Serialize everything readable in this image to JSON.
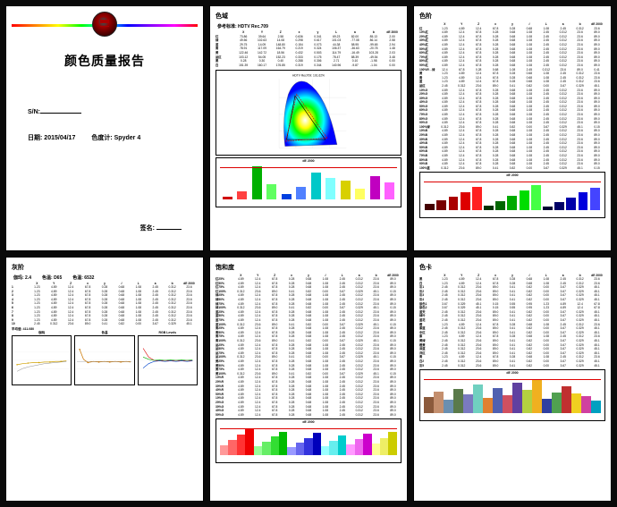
{
  "cover": {
    "title": "颜色质量报告",
    "sn_label": "S/N:",
    "date_label": "日期:",
    "date_value": "2015/04/17",
    "meter_label": "色度计:",
    "meter_value": "Spyder 4",
    "sign_label": "签名:"
  },
  "page2": {
    "title": "色域",
    "ref_label": "参考标准: HDTV Rec.709",
    "table": {
      "head": [
        "",
        "X",
        "Y",
        "Z",
        "x",
        "y",
        "L",
        "a",
        "b",
        "dE 2000"
      ],
      "rows": [
        [
          "红",
          "73.86",
          "39.64",
          "2.58",
          "0.636",
          "0.341",
          "69.23",
          "82.00",
          "85.13",
          "2.00"
        ],
        [
          "绿",
          "49.56",
          "102.63",
          "14.08",
          "0.298",
          "0.617",
          "101.03",
          "-77.08",
          "86.14",
          "2.58"
        ],
        [
          "蓝",
          "29.75",
          "14.09",
          "148.80",
          "0.154",
          "0.073",
          "44.38",
          "58.95",
          "-99.65",
          "2.94"
        ],
        [
          "青",
          "78.91",
          "117.09",
          "164.79",
          "0.219",
          "0.324",
          "106.37",
          "-36.63",
          "-20.78",
          "1.48"
        ],
        [
          "黄",
          "122.46",
          "142.72",
          "18.56",
          "0.432",
          "0.503",
          "114.79",
          "-16.49",
          "103.28",
          "2.03"
        ],
        [
          "品红",
          "103.12",
          "54.05",
          "152.23",
          "0.333",
          "0.175",
          "78.47",
          "88.39",
          "-49.54",
          "3.48"
        ],
        [
          "黑",
          "0.28",
          "0.30",
          "0.40",
          "0.288",
          "0.306",
          "2.71",
          "0.10",
          "-1.98",
          "0.00"
        ],
        [
          "白",
          "151.39",
          "160.17",
          "176.85",
          "0.319",
          "0.344",
          "140.96",
          "-9.87",
          "-1.04",
          "0.00"
        ]
      ]
    },
    "gamut_caption": "HDTV Rec709: 101.62%",
    "chart": {
      "caption": "dE 2000",
      "bars": [
        {
          "v": 8,
          "c": "#d00000"
        },
        {
          "v": 22,
          "c": "#ff4040"
        },
        {
          "v": 88,
          "c": "#00b000"
        },
        {
          "v": 42,
          "c": "#60ff60"
        },
        {
          "v": 16,
          "c": "#0040e0"
        },
        {
          "v": 34,
          "c": "#5080ff"
        },
        {
          "v": 72,
          "c": "#00c8c8"
        },
        {
          "v": 58,
          "c": "#80ffff"
        },
        {
          "v": 50,
          "c": "#d8d000"
        },
        {
          "v": 30,
          "c": "#ffff60"
        },
        {
          "v": 62,
          "c": "#c000c0"
        },
        {
          "v": 46,
          "c": "#ff60ff"
        }
      ]
    }
  },
  "page3": {
    "title": "色阶",
    "head": [
      "",
      "X",
      "Y",
      "Z",
      "x",
      "y",
      "√",
      "L",
      "a",
      "b",
      "dE 2000"
    ],
    "row_labels": [
      "红",
      "10%红",
      "20%红",
      "30%红",
      "40%红",
      "50%红",
      "60%红",
      "70%红",
      "80%红",
      "90%红",
      "100%R→绿",
      "黄",
      "青",
      "蓝",
      "品红",
      "10%G",
      "20%G",
      "30%G",
      "40%G",
      "50%G",
      "60%G",
      "70%G",
      "80%G",
      "90%G",
      "100%绿",
      "10%B",
      "20%B",
      "30%B",
      "40%B",
      "50%B",
      "60%B",
      "70%B",
      "80%B",
      "90%B",
      "100%蓝"
    ],
    "chart": {
      "caption": "dE 2000",
      "bars": [
        {
          "v": 18,
          "c": "#400"
        },
        {
          "v": 28,
          "c": "#700"
        },
        {
          "v": 38,
          "c": "#a00"
        },
        {
          "v": 52,
          "c": "#d00"
        },
        {
          "v": 66,
          "c": "#ff2020"
        },
        {
          "v": 14,
          "c": "#030"
        },
        {
          "v": 26,
          "c": "#060"
        },
        {
          "v": 40,
          "c": "#0a0"
        },
        {
          "v": 56,
          "c": "#0d0"
        },
        {
          "v": 72,
          "c": "#4f4"
        },
        {
          "v": 12,
          "c": "#003"
        },
        {
          "v": 24,
          "c": "#006"
        },
        {
          "v": 36,
          "c": "#00a"
        },
        {
          "v": 50,
          "c": "#00d"
        },
        {
          "v": 64,
          "c": "#44f"
        }
      ]
    }
  },
  "page4": {
    "title": "灰阶",
    "gamma_label": "伽玛: 2.4",
    "temp_label": "色温: D65",
    "k_label": "色温: 6532",
    "head": [
      "",
      "X",
      "Y",
      "Z",
      "x",
      "y",
      "√",
      "L",
      "a",
      "b",
      "dE 2000"
    ],
    "rows_n": 10,
    "avg_label": "平均值: 411.080",
    "panels": [
      "伽玛",
      "色温",
      "RGB Levels"
    ]
  },
  "page5": {
    "title": "饱和度",
    "head": [
      "",
      "X",
      "Y",
      "Z",
      "x",
      "y",
      "√",
      "L",
      "a",
      "b",
      "dE 2000"
    ],
    "row_labels": [
      "红25%",
      "红50%",
      "红75%",
      "红100%",
      "绿25%",
      "绿50%",
      "绿75%",
      "绿100%",
      "蓝25%",
      "蓝50%",
      "蓝75%",
      "蓝100%",
      "青25%",
      "青50%",
      "青75%",
      "青100%",
      "品25%",
      "品50%",
      "品75%",
      "品100%",
      "黄25%",
      "黄50%",
      "黄75%",
      "黄100%",
      "10%R",
      "20%R",
      "30%R",
      "40%R",
      "50%R",
      "10%G",
      "20%G",
      "30%G",
      "40%G",
      "50%G"
    ],
    "chart": {
      "caption": "dE 2000",
      "bars": [
        {
          "v": 30,
          "c": "#f99"
        },
        {
          "v": 46,
          "c": "#f66"
        },
        {
          "v": 62,
          "c": "#f33"
        },
        {
          "v": 78,
          "c": "#e00"
        },
        {
          "v": 26,
          "c": "#9f9"
        },
        {
          "v": 40,
          "c": "#6e6"
        },
        {
          "v": 56,
          "c": "#3d3"
        },
        {
          "v": 70,
          "c": "#0b0"
        },
        {
          "v": 24,
          "c": "#99f"
        },
        {
          "v": 38,
          "c": "#66e"
        },
        {
          "v": 52,
          "c": "#33d"
        },
        {
          "v": 66,
          "c": "#00b"
        },
        {
          "v": 28,
          "c": "#9ff"
        },
        {
          "v": 42,
          "c": "#6ee"
        },
        {
          "v": 58,
          "c": "#0cc"
        },
        {
          "v": 32,
          "c": "#f9f"
        },
        {
          "v": 48,
          "c": "#e6e"
        },
        {
          "v": 64,
          "c": "#c0c"
        },
        {
          "v": 34,
          "c": "#ff9"
        },
        {
          "v": 50,
          "c": "#ee6"
        },
        {
          "v": 68,
          "c": "#cc0"
        }
      ]
    }
  },
  "page6": {
    "title": "色卡",
    "head": [
      "",
      "X",
      "Y",
      "Z",
      "x",
      "y",
      "√",
      "L",
      "a",
      "b",
      "dE 2000"
    ],
    "row_labels": [
      "黑",
      "白",
      "灰1",
      "灰2",
      "灰3",
      "灰4",
      "肤色1",
      "肤色2",
      "蓝天",
      "绿叶",
      "蓝花",
      "橙",
      "紫蓝",
      "中红",
      "紫",
      "黄绿",
      "橙黄",
      "深蓝",
      "洋红",
      "青",
      "白2",
      "灰5"
    ],
    "chart": {
      "caption": "dE 2000",
      "bars": [
        {
          "v": 40,
          "c": "#8b5a3c"
        },
        {
          "v": 52,
          "c": "#c48f6e"
        },
        {
          "v": 34,
          "c": "#6a8fb0"
        },
        {
          "v": 58,
          "c": "#5a7a4a"
        },
        {
          "v": 46,
          "c": "#7a7ac0"
        },
        {
          "v": 70,
          "c": "#70d0c0"
        },
        {
          "v": 38,
          "c": "#e08030"
        },
        {
          "v": 62,
          "c": "#5060b0"
        },
        {
          "v": 44,
          "c": "#d05060"
        },
        {
          "v": 74,
          "c": "#6040a0"
        },
        {
          "v": 56,
          "c": "#b4d040"
        },
        {
          "v": 80,
          "c": "#f0b020"
        },
        {
          "v": 36,
          "c": "#3040a0"
        },
        {
          "v": 50,
          "c": "#50a050"
        },
        {
          "v": 66,
          "c": "#c03030"
        },
        {
          "v": 48,
          "c": "#f0d020"
        },
        {
          "v": 42,
          "c": "#d040a0"
        },
        {
          "v": 30,
          "c": "#00a0c0"
        }
      ]
    }
  },
  "filler_vals": [
    "0.00",
    "1.23",
    "2.45",
    "3.67",
    "4.89",
    "0.312",
    "0.329",
    "12.4",
    "23.6",
    "45.1",
    "67.8",
    "89.0",
    "0.15",
    "0.28",
    "0.41",
    "0.55",
    "0.68",
    "0.82",
    "0.95",
    "1.08"
  ]
}
